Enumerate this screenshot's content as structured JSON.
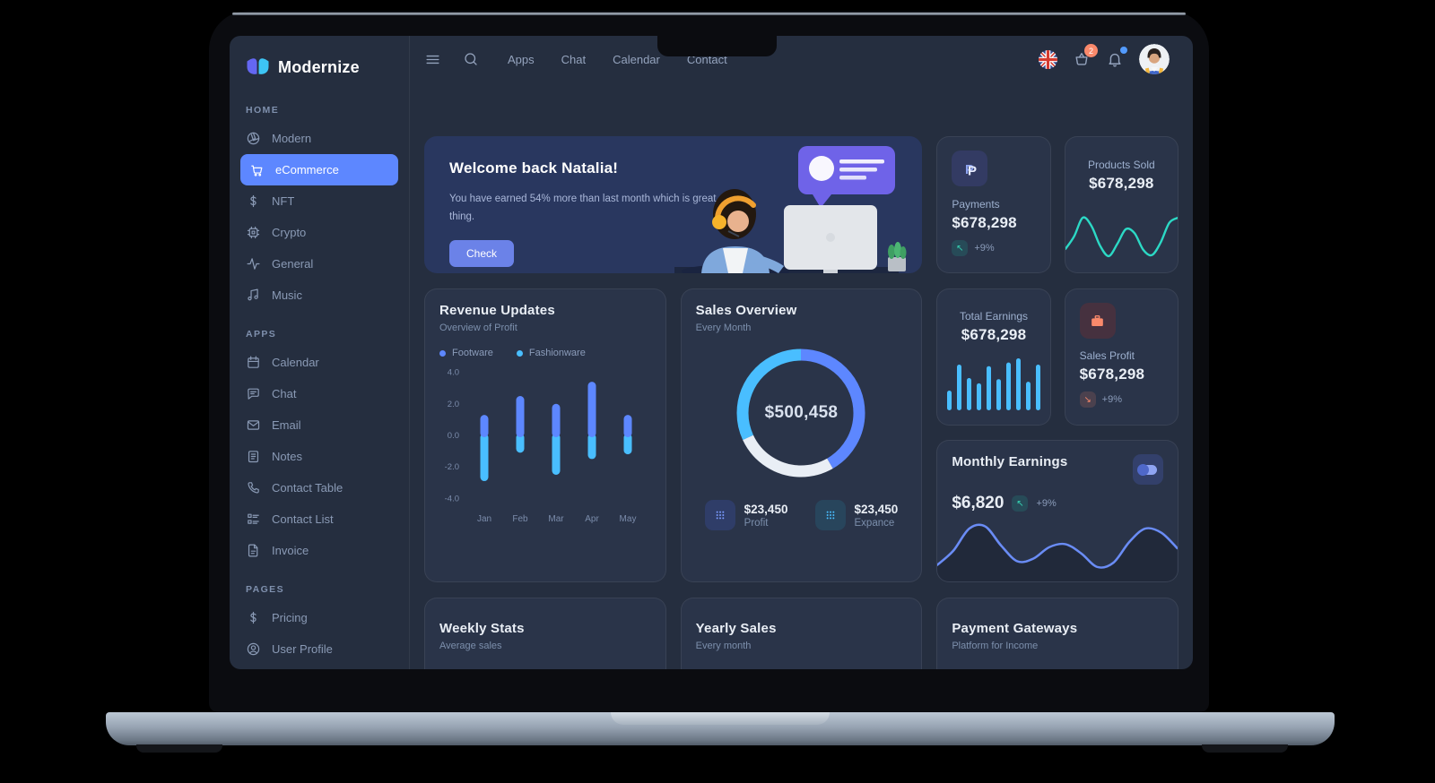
{
  "brand": {
    "name": "Modernize"
  },
  "topnav": {
    "links": [
      "Apps",
      "Chat",
      "Calendar",
      "Contact"
    ],
    "cart_badge": "2"
  },
  "sidebar": {
    "sections": [
      {
        "label": "HOME",
        "items": [
          {
            "label": "Modern",
            "icon": "aperture-icon",
            "active": false
          },
          {
            "label": "eCommerce",
            "icon": "cart-icon",
            "active": true
          },
          {
            "label": "NFT",
            "icon": "dollar-icon",
            "active": false
          },
          {
            "label": "Crypto",
            "icon": "cpu-icon",
            "active": false
          },
          {
            "label": "General",
            "icon": "activity-icon",
            "active": false
          },
          {
            "label": "Music",
            "icon": "music-icon",
            "active": false
          }
        ]
      },
      {
        "label": "APPS",
        "items": [
          {
            "label": "Calendar",
            "icon": "calendar-icon",
            "active": false
          },
          {
            "label": "Chat",
            "icon": "chat-icon",
            "active": false
          },
          {
            "label": "Email",
            "icon": "mail-icon",
            "active": false
          },
          {
            "label": "Notes",
            "icon": "notes-icon",
            "active": false
          },
          {
            "label": "Contact Table",
            "icon": "phone-icon",
            "active": false
          },
          {
            "label": "Contact List",
            "icon": "list-icon",
            "active": false
          },
          {
            "label": "Invoice",
            "icon": "file-icon",
            "active": false
          }
        ]
      },
      {
        "label": "PAGES",
        "items": [
          {
            "label": "Pricing",
            "icon": "dollar-icon",
            "active": false
          },
          {
            "label": "User Profile",
            "icon": "user-icon",
            "active": false
          }
        ]
      }
    ]
  },
  "banner": {
    "title": "Welcome back Natalia!",
    "body": "You have earned 54% more than last month which is great thing.",
    "button": "Check"
  },
  "cards": {
    "payments": {
      "label": "Payments",
      "value": "$678,298",
      "delta": "+9%"
    },
    "products_sold": {
      "label": "Products Sold",
      "value": "$678,298"
    },
    "revenue": {
      "title": "Revenue Updates",
      "subtitle": "Overview of Profit",
      "legend": [
        "Footware",
        "Fashionware"
      ]
    },
    "sales_overview": {
      "title": "Sales Overview",
      "subtitle": "Every Month",
      "center": "$500,458",
      "stats": [
        {
          "value": "$23,450",
          "label": "Profit"
        },
        {
          "value": "$23,450",
          "label": "Expance"
        }
      ]
    },
    "total_earnings": {
      "label": "Total Earnings",
      "value": "$678,298"
    },
    "sales_profit": {
      "label": "Sales Profit",
      "value": "$678,298",
      "delta": "+9%"
    },
    "monthly_earnings": {
      "title": "Monthly Earnings",
      "value": "$6,820",
      "delta": "+9%"
    },
    "weekly_stats": {
      "title": "Weekly Stats",
      "subtitle": "Average sales"
    },
    "yearly_sales": {
      "title": "Yearly Sales",
      "subtitle": "Every month"
    },
    "payment_gateways": {
      "title": "Payment Gateways",
      "subtitle": "Platform for Income"
    }
  },
  "chart_data": [
    {
      "id": "revenue-updates",
      "type": "bar",
      "title": "Revenue Updates",
      "categories": [
        "Jan",
        "Feb",
        "Mar",
        "Apr",
        "May"
      ],
      "series": [
        {
          "name": "Footware",
          "color": "#5d87ff",
          "values": [
            1.3,
            2.5,
            2.0,
            3.4,
            1.3
          ]
        },
        {
          "name": "Fashionware",
          "color": "#49beff",
          "values": [
            -2.9,
            -1.1,
            -2.5,
            -1.5,
            -1.2
          ]
        }
      ],
      "ylim": [
        -4,
        4
      ],
      "yticks": [
        "4.0",
        "2.0",
        "0.0",
        "-2.0",
        "-4.0"
      ],
      "grid": false,
      "legend_position": "top"
    },
    {
      "id": "sales-overview-donut",
      "type": "pie",
      "title": "Sales Overview",
      "center_label": "$500,458",
      "slices": [
        {
          "name": "Profit",
          "color": "#5d87ff",
          "degrees": 150,
          "percent": 41.7
        },
        {
          "name": "Other",
          "color": "#e9eef5",
          "degrees": 95,
          "percent": 26.4
        },
        {
          "name": "Expance",
          "color": "#49beff",
          "degrees": 115,
          "percent": 31.9
        }
      ]
    },
    {
      "id": "products-sold-spark",
      "type": "line",
      "title": "Products Sold",
      "color": "#2cd9c5",
      "values": [
        28,
        52,
        88,
        72,
        34,
        14,
        38,
        66,
        58,
        26,
        16,
        40,
        78,
        88
      ]
    },
    {
      "id": "total-earnings-bars",
      "type": "bar",
      "title": "Total Earnings",
      "color": "#49beff",
      "values": [
        38,
        88,
        62,
        52,
        85,
        60,
        92,
        100,
        55,
        88
      ]
    },
    {
      "id": "monthly-earnings-area",
      "type": "area",
      "title": "Monthly Earnings",
      "color": "#6a8cf5",
      "values": [
        18,
        45,
        88,
        92,
        55,
        25,
        30,
        52,
        58,
        40,
        14,
        22,
        62,
        88,
        80,
        50
      ]
    }
  ],
  "colors": {
    "primary": "#5d87ff",
    "sky": "#49beff",
    "teal": "#2cd9c5",
    "orange": "#fa896b",
    "banner": "#29375f",
    "card": "#2a3449",
    "background": "#252e3f"
  }
}
